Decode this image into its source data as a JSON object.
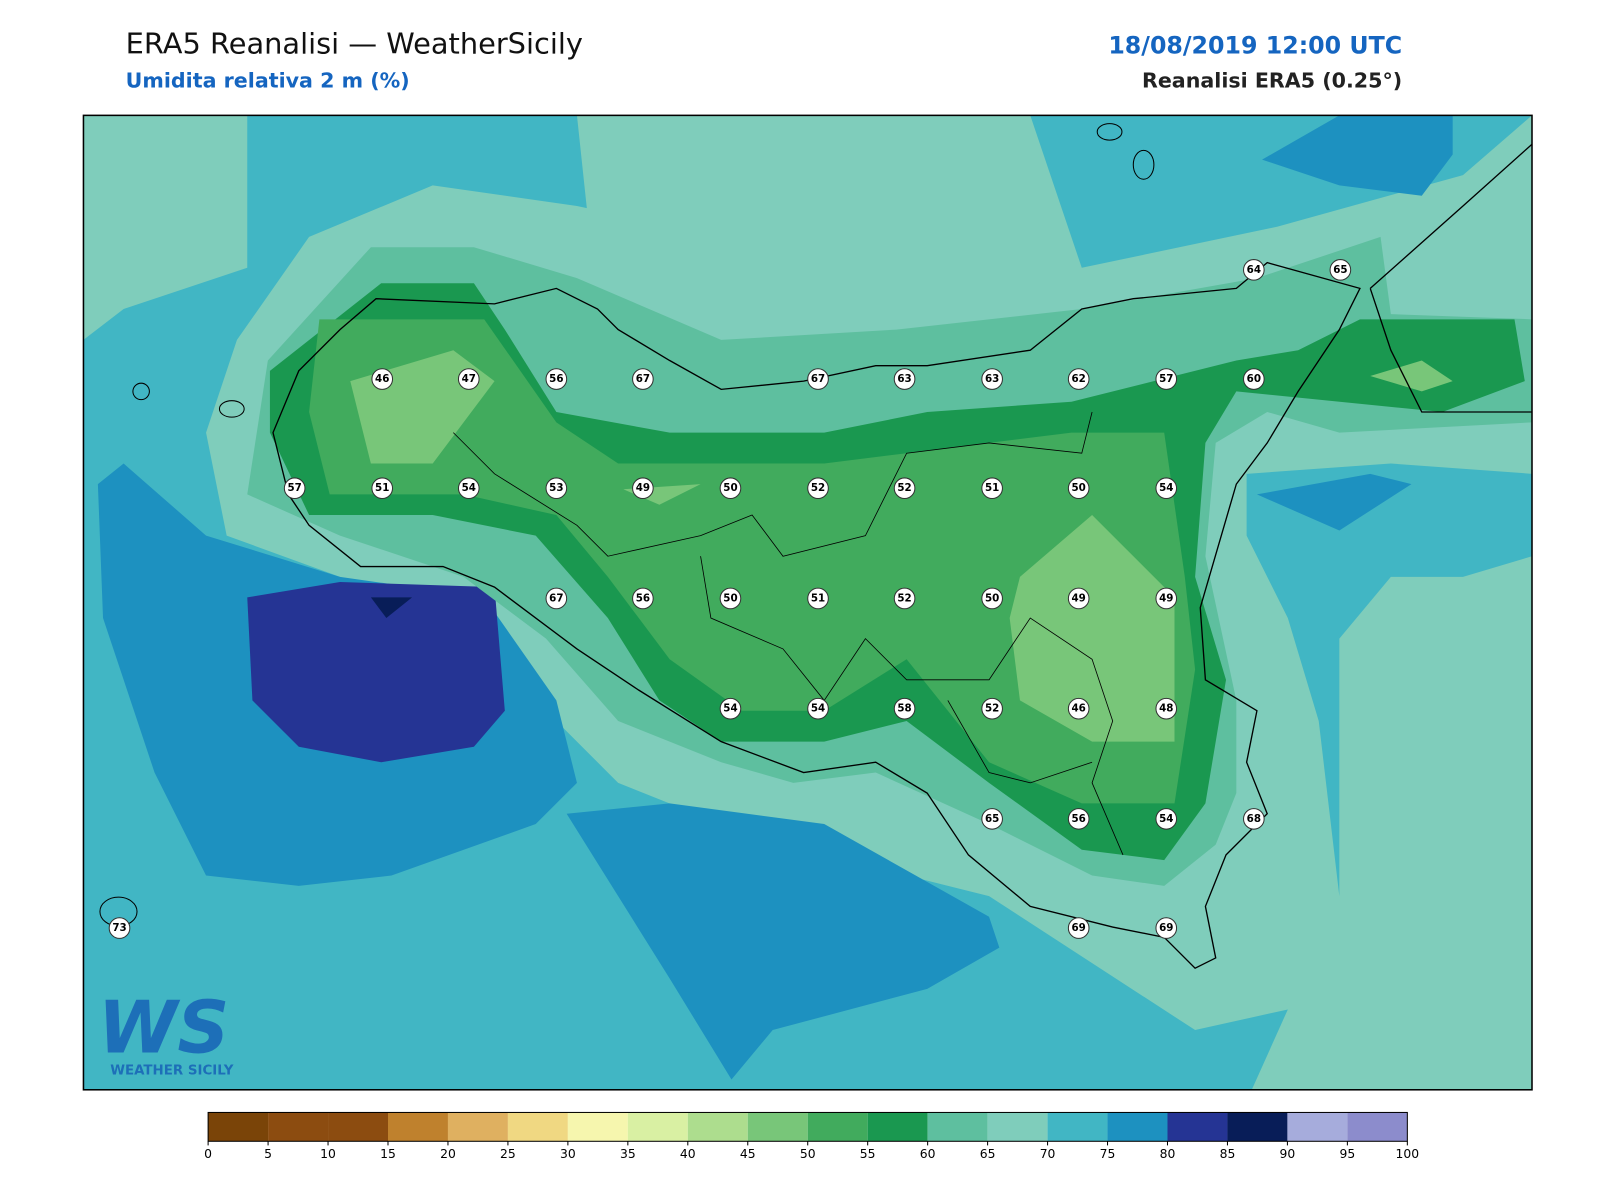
{
  "header": {
    "title": "ERA5 Reanalisi — WeatherSicily",
    "subtitle": "Umidita relativa 2 m (%)",
    "datetime": "18/08/2019 12:00 UTC",
    "source": "Reanalisi ERA5 (0.25°)"
  },
  "map": {
    "stations": [
      64,
      65,
      46,
      47,
      56,
      67,
      67,
      63,
      63,
      62,
      57,
      60,
      57,
      51,
      54,
      53,
      49,
      50,
      52,
      52,
      51,
      50,
      54,
      67,
      56,
      50,
      51,
      52,
      50,
      49,
      49,
      54,
      54,
      58,
      52,
      46,
      48,
      65,
      56,
      54,
      68,
      73,
      69,
      69
    ]
  },
  "colorbar": {
    "ticks": [
      0,
      5,
      10,
      15,
      20,
      25,
      30,
      35,
      40,
      45,
      50,
      55,
      60,
      65,
      70,
      75,
      80,
      85,
      90,
      95,
      100
    ],
    "colors": [
      "#7a4408",
      "#8c4c10",
      "#8c4c10",
      "#bf812d",
      "#dfb060",
      "#f0d882",
      "#f6f6ae",
      "#d9f0a3",
      "#addd8e",
      "#78c679",
      "#41ab5d",
      "#1a9850",
      "#5ebf9f",
      "#7fcdbb",
      "#41b6c4",
      "#1d91c0",
      "#253494",
      "#081d58",
      "#a6acdc",
      "#8c8ccc"
    ]
  },
  "logo": {
    "mark": "WS",
    "text": "WEATHER SICILY"
  }
}
